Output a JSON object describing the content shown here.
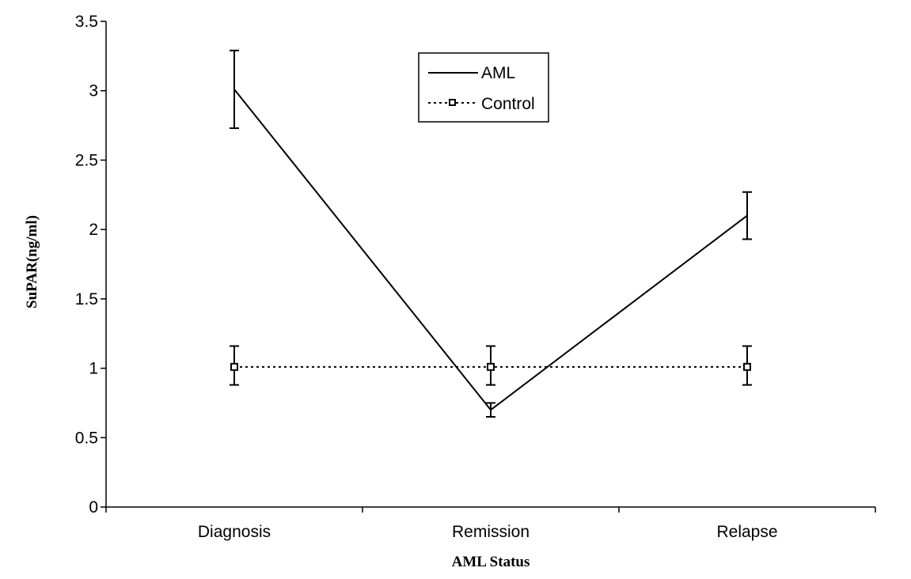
{
  "chart_data": {
    "type": "line",
    "title": "",
    "xlabel": "AML Status",
    "ylabel": "SuPAR(ng/ml)",
    "ylim": [
      0,
      3.5
    ],
    "yticks": [
      "0",
      "0.5",
      "1",
      "1.5",
      "2",
      "2.5",
      "3",
      "3.5"
    ],
    "categories": [
      "Diagnosis",
      "Remission",
      "Relapse"
    ],
    "grid": false,
    "legend_position": "top-center",
    "series": [
      {
        "name": "AML",
        "line_style": "solid",
        "marker": "none",
        "color": "#000000",
        "values": [
          3.01,
          0.7,
          2.1
        ],
        "error_low": [
          2.73,
          0.65,
          1.93
        ],
        "error_high": [
          3.29,
          0.75,
          2.27
        ]
      },
      {
        "name": "Control",
        "line_style": "dotted",
        "marker": "square",
        "color": "#000000",
        "values": [
          1.01,
          1.01,
          1.01
        ],
        "error_low": [
          0.88,
          0.88,
          0.88
        ],
        "error_high": [
          1.16,
          1.16,
          1.16
        ]
      }
    ]
  }
}
